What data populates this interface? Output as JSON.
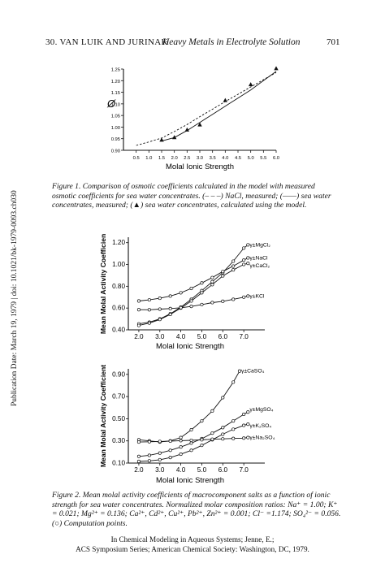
{
  "header": {
    "left": "30.  VAN LUIK AND JURINAK",
    "middle": "Heavy Metals in Electrolyte Solution",
    "page_number": "701"
  },
  "sidebar_text": "Publication Date: March 19, 1979 | doi: 10.1021/bk-1979-0093.ch030",
  "figure1": {
    "caption": "Figure 1.  Comparison of osmotic coefficients calculated in the model with measured osmotic coefficients for sea water concentrates. (– – –) NaCl, measured; (——) sea water concentrates, measured; (▲) sea water concentrates, calculated using the model."
  },
  "figure2": {
    "caption": "Figure 2.  Mean molal activity coefficients of macrocomponent salts as a function of ionic strength for sea water concentrates. Normalized molar composition ratios: Na⁺ = 1.00; K⁺ = 0.021; Mg²⁺ = 0.136; Ca²⁺, Cd²⁺, Cu²⁺, Pb²⁺, Zn²⁺ = 0.001; Cl⁻ =1.174; SO₄²⁻ = 0.056. (○) Computation points."
  },
  "footer": {
    "line1": "In Chemical Modeling in Aqueous Systems; Jenne, E.;",
    "line2": "ACS Symposium Series; American Chemical Society: Washington, DC, 1979."
  },
  "chart_data": [
    {
      "type": "line",
      "xlabel": "Molal Ionic Strength",
      "ylabel": "Ø",
      "xlim": [
        0,
        6.0
      ],
      "ylim": [
        0.9,
        1.25
      ],
      "x_ticks": [
        "0.5",
        "1.0",
        "1.5",
        "2.0",
        "2.5",
        "3.0",
        "3.5",
        "4.0",
        "4.5",
        "5.0",
        "5.5",
        "6.0"
      ],
      "y_ticks": [
        "0.90",
        "0.95",
        "1.00",
        "1.05",
        "1.10",
        "1.15",
        "1.20",
        "1.25"
      ],
      "series": [
        {
          "style": "dashed",
          "x": [
            0.5,
            1.0,
            1.5,
            2.0,
            2.5,
            3.0,
            3.5,
            4.0,
            4.5,
            5.0,
            5.5,
            6.0
          ],
          "y": [
            0.921,
            0.936,
            0.953,
            0.981,
            1.011,
            1.045,
            1.077,
            1.11,
            1.141,
            1.173,
            1.204,
            1.235
          ]
        },
        {
          "style": "solid",
          "x": [
            1.5,
            2.0,
            2.5,
            3.0,
            3.5,
            4.0,
            4.5,
            5.0,
            5.5,
            6.0
          ],
          "y": [
            0.94,
            0.955,
            0.985,
            1.02,
            1.055,
            1.09,
            1.125,
            1.16,
            1.2,
            1.24
          ]
        },
        {
          "style": "triangles",
          "x": [
            1.5,
            2.0,
            2.5,
            3.0,
            4.0,
            5.0,
            6.0
          ],
          "y": [
            0.944,
            0.955,
            0.988,
            1.01,
            1.115,
            1.183,
            1.252
          ]
        }
      ]
    },
    {
      "type": "line",
      "xlabel": "Molal Ionic Strength",
      "ylabel": "Mean Molal Activity Coefficient",
      "xlim": [
        1.5,
        8.0
      ],
      "ylim": [
        0.4,
        1.25
      ],
      "x_ticks": [
        "2.0",
        "3.0",
        "4.0",
        "5.0",
        "6.0",
        "7.0"
      ],
      "y_ticks": [
        "0.40",
        "0.60",
        "0.80",
        "1.00",
        "1.20"
      ],
      "series": [
        {
          "name": "γ±MgCl₂",
          "x": [
            2,
            2.5,
            3,
            3.5,
            4,
            4.5,
            5,
            5.5,
            6,
            6.5,
            7,
            7.2
          ],
          "y": [
            0.455,
            0.47,
            0.5,
            0.548,
            0.608,
            0.68,
            0.76,
            0.842,
            0.925,
            1.03,
            1.15,
            1.18
          ]
        },
        {
          "name": "γ±NaCl",
          "x": [
            2,
            2.5,
            3,
            3.5,
            4,
            4.5,
            5,
            5.5,
            6,
            6.5,
            7,
            7.2
          ],
          "y": [
            0.665,
            0.675,
            0.69,
            0.71,
            0.74,
            0.78,
            0.83,
            0.88,
            0.935,
            0.985,
            1.04,
            1.06
          ]
        },
        {
          "name": "γ±CaCl₂",
          "x": [
            2,
            2.5,
            3,
            3.5,
            4,
            4.5,
            5,
            5.5,
            6,
            6.5,
            7,
            7.2
          ],
          "y": [
            0.44,
            0.462,
            0.495,
            0.542,
            0.6,
            0.665,
            0.74,
            0.815,
            0.895,
            0.95,
            1.0,
            1.01
          ]
        },
        {
          "name": "γ±KCl",
          "x": [
            2,
            2.5,
            3,
            3.5,
            4,
            4.5,
            5,
            5.5,
            6,
            6.5,
            7,
            7.2
          ],
          "y": [
            0.585,
            0.584,
            0.59,
            0.595,
            0.603,
            0.615,
            0.632,
            0.65,
            0.662,
            0.68,
            0.7,
            0.71
          ]
        }
      ]
    },
    {
      "type": "line",
      "xlabel": "Molal Ionic Strength",
      "ylabel": "Mean Molal Activity Coefficient",
      "xlim": [
        1.5,
        8.0
      ],
      "ylim": [
        0.1,
        0.95
      ],
      "x_ticks": [
        "2.0",
        "3.0",
        "4.0",
        "5.0",
        "6.0",
        "7.0"
      ],
      "y_ticks": [
        "0.10",
        "0.30",
        "0.50",
        "0.70",
        "0.90"
      ],
      "series": [
        {
          "name": "γ±CaSO₄",
          "x": [
            2,
            2.5,
            3,
            3.5,
            4,
            4.5,
            5,
            5.5,
            6,
            6.5,
            6.8
          ],
          "y": [
            0.31,
            0.3,
            0.29,
            0.3,
            0.33,
            0.4,
            0.48,
            0.57,
            0.69,
            0.83,
            0.93
          ]
        },
        {
          "name": "γ±MgSO₄",
          "x": [
            2,
            2.5,
            3,
            3.5,
            4,
            4.5,
            5,
            5.5,
            6,
            6.5,
            7,
            7.2
          ],
          "y": [
            0.16,
            0.17,
            0.19,
            0.215,
            0.245,
            0.28,
            0.32,
            0.37,
            0.42,
            0.48,
            0.54,
            0.56
          ]
        },
        {
          "name": "γ±K₂SO₄",
          "x": [
            2,
            2.5,
            3,
            3.5,
            4,
            4.5,
            5,
            5.5,
            6,
            6.5,
            7,
            7.2
          ],
          "y": [
            0.115,
            0.12,
            0.13,
            0.15,
            0.18,
            0.215,
            0.26,
            0.31,
            0.36,
            0.405,
            0.44,
            0.45
          ]
        },
        {
          "name": "γ±Na₂SO₄",
          "x": [
            2,
            2.5,
            3,
            3.5,
            4,
            4.5,
            5,
            5.5,
            6,
            6.5,
            7,
            7.2
          ],
          "y": [
            0.29,
            0.292,
            0.295,
            0.298,
            0.302,
            0.305,
            0.31,
            0.315,
            0.318,
            0.322,
            0.325,
            0.33
          ]
        }
      ]
    }
  ]
}
